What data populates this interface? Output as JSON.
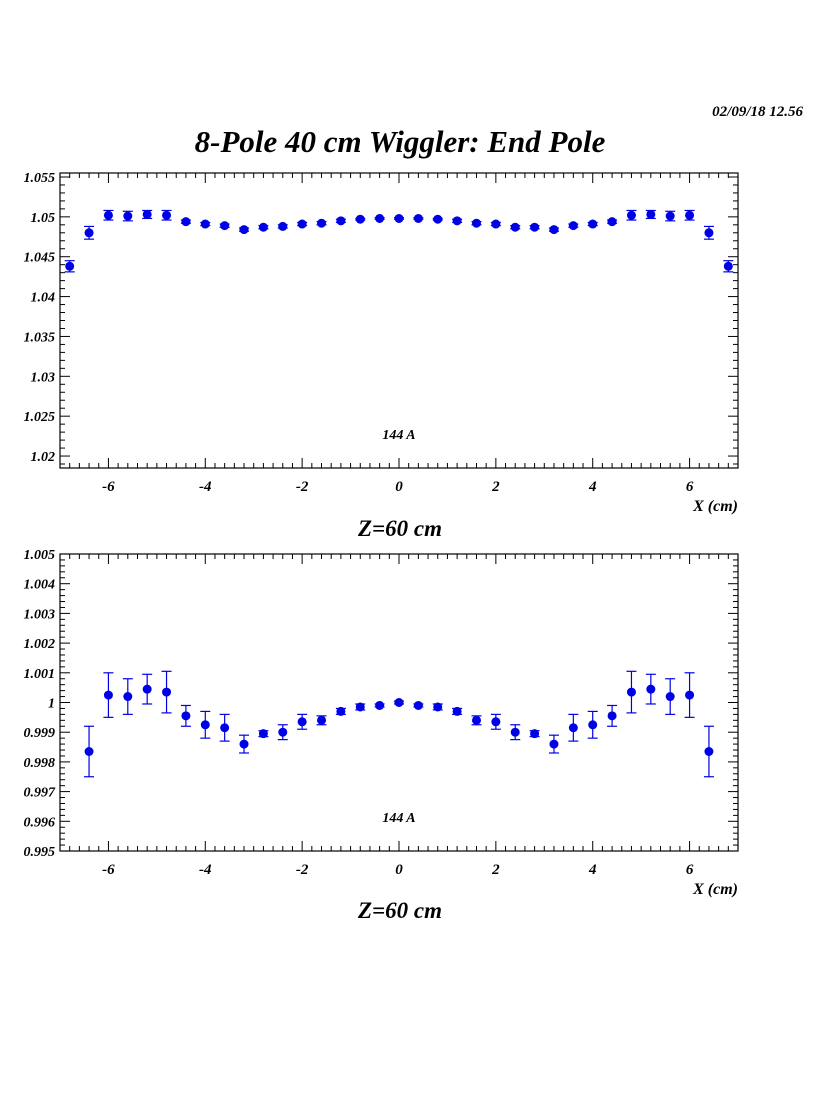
{
  "header": {
    "timestamp": "02/09/18   12.56",
    "title": "8-Pole 40 cm Wiggler: End Pole"
  },
  "marker_color": "#0000e6",
  "chart_data": [
    {
      "type": "scatter",
      "title": "",
      "xlabel": "X (cm)",
      "ylabel": "",
      "caption": "Z=60 cm",
      "annotation": "144 A",
      "xlim": [
        -7.0,
        7.0
      ],
      "ylim": [
        1.0185,
        1.0555
      ],
      "xticks": [
        -6,
        -4,
        -2,
        0,
        2,
        4,
        6
      ],
      "xtick_labels": [
        "-6",
        "-4",
        "-2",
        "0",
        "2",
        "4",
        "6"
      ],
      "yticks": [
        1.02,
        1.025,
        1.03,
        1.035,
        1.04,
        1.045,
        1.05,
        1.055
      ],
      "ytick_labels": [
        "1.02",
        "1.025",
        "1.03",
        "1.035",
        "1.04",
        "1.045",
        "1.05",
        "1.055"
      ],
      "grid": false,
      "x": [
        -6.8,
        -6.4,
        -6.0,
        -5.6,
        -5.2,
        -4.8,
        -4.4,
        -4.0,
        -3.6,
        -3.2,
        -2.8,
        -2.4,
        -2.0,
        -1.6,
        -1.2,
        -0.8,
        -0.4,
        0.0,
        0.4,
        0.8,
        1.2,
        1.6,
        2.0,
        2.4,
        2.8,
        3.2,
        3.6,
        4.0,
        4.4,
        4.8,
        5.2,
        5.6,
        6.0,
        6.4,
        6.8
      ],
      "y": [
        1.0438,
        1.048,
        1.0502,
        1.0501,
        1.0503,
        1.0502,
        1.0494,
        1.0491,
        1.0489,
        1.0484,
        1.0487,
        1.0488,
        1.0491,
        1.0492,
        1.0495,
        1.0497,
        1.0498,
        1.0498,
        1.0498,
        1.0497,
        1.0495,
        1.0492,
        1.0491,
        1.0487,
        1.0487,
        1.0484,
        1.0489,
        1.0491,
        1.0494,
        1.0502,
        1.0503,
        1.0501,
        1.0502,
        1.048,
        1.0438
      ],
      "yerr": [
        0.0007,
        0.0008,
        0.0006,
        0.0006,
        0.0005,
        0.0006,
        0.0002,
        0.0002,
        0.0002,
        0.0002,
        0.0002,
        0.0002,
        0.0002,
        0.0002,
        0.0002,
        0.0001,
        0.0001,
        0.0001,
        0.0001,
        0.0001,
        0.0002,
        0.0002,
        0.0002,
        0.0002,
        0.0002,
        0.0002,
        0.0002,
        0.0002,
        0.0002,
        0.0006,
        0.0005,
        0.0006,
        0.0006,
        0.0008,
        0.0007
      ]
    },
    {
      "type": "scatter",
      "title": "",
      "xlabel": "X (cm)",
      "ylabel": "",
      "caption": "Z=60 cm",
      "annotation": "144 A",
      "xlim": [
        -7.0,
        7.0
      ],
      "ylim": [
        0.995,
        1.005
      ],
      "xticks": [
        -6,
        -4,
        -2,
        0,
        2,
        4,
        6
      ],
      "xtick_labels": [
        "-6",
        "-4",
        "-2",
        "0",
        "2",
        "4",
        "6"
      ],
      "yticks": [
        0.995,
        0.996,
        0.997,
        0.998,
        0.999,
        1.0,
        1.001,
        1.002,
        1.003,
        1.004,
        1.005
      ],
      "ytick_labels": [
        "0.995",
        "0.996",
        "0.997",
        "0.998",
        "0.999",
        "1",
        "1.001",
        "1.002",
        "1.003",
        "1.004",
        "1.005"
      ],
      "grid": false,
      "x": [
        -6.4,
        -6.0,
        -5.6,
        -5.2,
        -4.8,
        -4.4,
        -4.0,
        -3.6,
        -3.2,
        -2.8,
        -2.4,
        -2.0,
        -1.6,
        -1.2,
        -0.8,
        -0.4,
        0.0,
        0.4,
        0.8,
        1.2,
        1.6,
        2.0,
        2.4,
        2.8,
        3.2,
        3.6,
        4.0,
        4.4,
        4.8,
        5.2,
        5.6,
        6.0,
        6.4
      ],
      "y": [
        0.99835,
        1.00025,
        1.0002,
        1.00045,
        1.00035,
        0.99955,
        0.99925,
        0.99915,
        0.9986,
        0.99895,
        0.999,
        0.99935,
        0.9994,
        0.9997,
        0.99985,
        0.9999,
        1.0,
        0.9999,
        0.99985,
        0.9997,
        0.9994,
        0.99935,
        0.999,
        0.99895,
        0.9986,
        0.99915,
        0.99925,
        0.99955,
        1.00035,
        1.00045,
        1.0002,
        1.00025,
        0.99835
      ],
      "yerr": [
        0.00085,
        0.00075,
        0.0006,
        0.0005,
        0.0007,
        0.00035,
        0.00045,
        0.00045,
        0.0003,
        0.0001,
        0.00025,
        0.00025,
        0.00015,
        0.0001,
        0.0001,
        5e-05,
        5e-05,
        5e-05,
        0.0001,
        0.0001,
        0.00015,
        0.00025,
        0.00025,
        0.0001,
        0.0003,
        0.00045,
        0.00045,
        0.00035,
        0.0007,
        0.0005,
        0.0006,
        0.00075,
        0.00085
      ]
    }
  ]
}
